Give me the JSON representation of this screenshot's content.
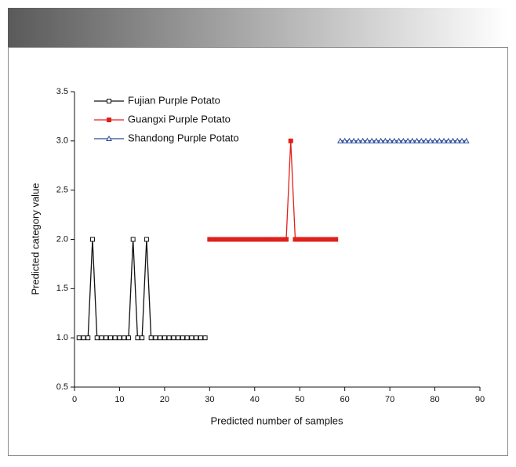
{
  "chart_data": {
    "type": "line",
    "xlabel": "Predicted number of samples",
    "ylabel": "Predicted category value",
    "xlim": [
      0,
      90
    ],
    "xticks": [
      0,
      10,
      20,
      30,
      40,
      50,
      60,
      70,
      80,
      90
    ],
    "ylim": [
      0.5,
      3.5
    ],
    "yticks": [
      0.5,
      {
        "value": 1,
        "label": "1.0"
      },
      1.5,
      {
        "value": 2,
        "label": "2.0"
      },
      2.5,
      {
        "value": 3,
        "label": "3.0"
      },
      3.5
    ],
    "legend": "upper left",
    "series": [
      {
        "name": "Fujian Purple Potato",
        "color": "#111111",
        "marker": "square-open",
        "x": [
          1,
          2,
          3,
          4,
          5,
          6,
          7,
          8,
          9,
          10,
          11,
          12,
          13,
          14,
          15,
          16,
          17,
          18,
          19,
          20,
          21,
          22,
          23,
          24,
          25,
          26,
          27,
          28,
          29
        ],
        "values": [
          1,
          1,
          1,
          2,
          1,
          1,
          1,
          1,
          1,
          1,
          1,
          1,
          2,
          1,
          1,
          2,
          1,
          1,
          1,
          1,
          1,
          1,
          1,
          1,
          1,
          1,
          1,
          1,
          1
        ]
      },
      {
        "name": "Guangxi Purple Potato",
        "color": "#e0201b",
        "marker": "square-filled",
        "x": [
          30,
          31,
          32,
          33,
          34,
          35,
          36,
          37,
          38,
          39,
          40,
          41,
          42,
          43,
          44,
          45,
          46,
          47,
          48,
          49,
          50,
          51,
          52,
          53,
          54,
          55,
          56,
          57,
          58
        ],
        "values": [
          2,
          2,
          2,
          2,
          2,
          2,
          2,
          2,
          2,
          2,
          2,
          2,
          2,
          2,
          2,
          2,
          2,
          2,
          3,
          2,
          2,
          2,
          2,
          2,
          2,
          2,
          2,
          2,
          2
        ]
      },
      {
        "name": "Shandong Purple Potato",
        "color": "#2a4a9a",
        "marker": "triangle-open",
        "x": [
          59,
          60,
          61,
          62,
          63,
          64,
          65,
          66,
          67,
          68,
          69,
          70,
          71,
          72,
          73,
          74,
          75,
          76,
          77,
          78,
          79,
          80,
          81,
          82,
          83,
          84,
          85,
          86,
          87
        ],
        "values": [
          3,
          3,
          3,
          3,
          3,
          3,
          3,
          3,
          3,
          3,
          3,
          3,
          3,
          3,
          3,
          3,
          3,
          3,
          3,
          3,
          3,
          3,
          3,
          3,
          3,
          3,
          3,
          3,
          3
        ]
      }
    ]
  }
}
